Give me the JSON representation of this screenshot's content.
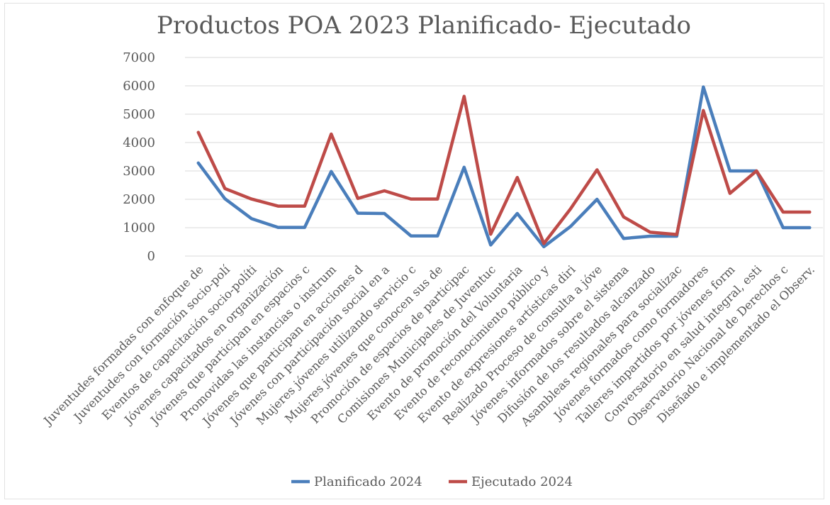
{
  "chart_data": {
    "type": "line",
    "title": "Productos POA 2023 Planificado- Ejecutado",
    "xlabel": "",
    "ylabel": "",
    "ylim": [
      0,
      7000
    ],
    "yticks": [
      0,
      1000,
      2000,
      3000,
      4000,
      5000,
      6000,
      7000
    ],
    "grid": true,
    "legend": "bottom",
    "categories": [
      "Juventudes formadas con enfoque de",
      "Juventudes con formación socio-polí",
      "Eventos de capacitación socio-políti",
      "Jóvenes capacitados en organización",
      "Jóvenes que participan en espacios c",
      "Promovidas las instancias o instrum",
      "Jóvenes que participan en acciones d",
      "Jóvenes con participación social en a",
      "Mujeres jóvenes utilizando servicio c",
      "Mujeres jóvenes que conocen sus de",
      "Promoción de espacios de participac",
      "Comisiones Municipales de Juventuc",
      "Evento de promoción del Voluntaria",
      "Evento de reconocimiento público y",
      "Evento de expresiones artísticas diri",
      "Realizado Proceso de consulta a jóve",
      "Jóvenes informados sobre el sistema",
      "Difusión de los resultados alcanzado",
      "Asambleas regionales para socializac",
      "Jóvenes formados como formadores",
      "Talleres impartidos por jóvenes form",
      "Conversatorio en salud integral, esti",
      "Observatorio Nacional de Derechos c",
      "Diseñado e implementado el Observ."
    ],
    "series": [
      {
        "name": "Planificado 2024",
        "color": "#4a7ebb",
        "values": [
          3280,
          2020,
          1320,
          1010,
          1010,
          2980,
          1510,
          1500,
          710,
          710,
          3130,
          390,
          1500,
          330,
          1040,
          2000,
          620,
          700,
          700,
          5960,
          3000,
          3000,
          1000,
          1000
        ]
      },
      {
        "name": "Ejecutado 2024",
        "color": "#be4b48",
        "values": [
          4360,
          2380,
          2010,
          1760,
          1760,
          4300,
          2030,
          2300,
          2010,
          2010,
          5630,
          770,
          2770,
          440,
          1660,
          3040,
          1380,
          840,
          760,
          5130,
          2210,
          3000,
          1550,
          1550
        ]
      }
    ]
  }
}
